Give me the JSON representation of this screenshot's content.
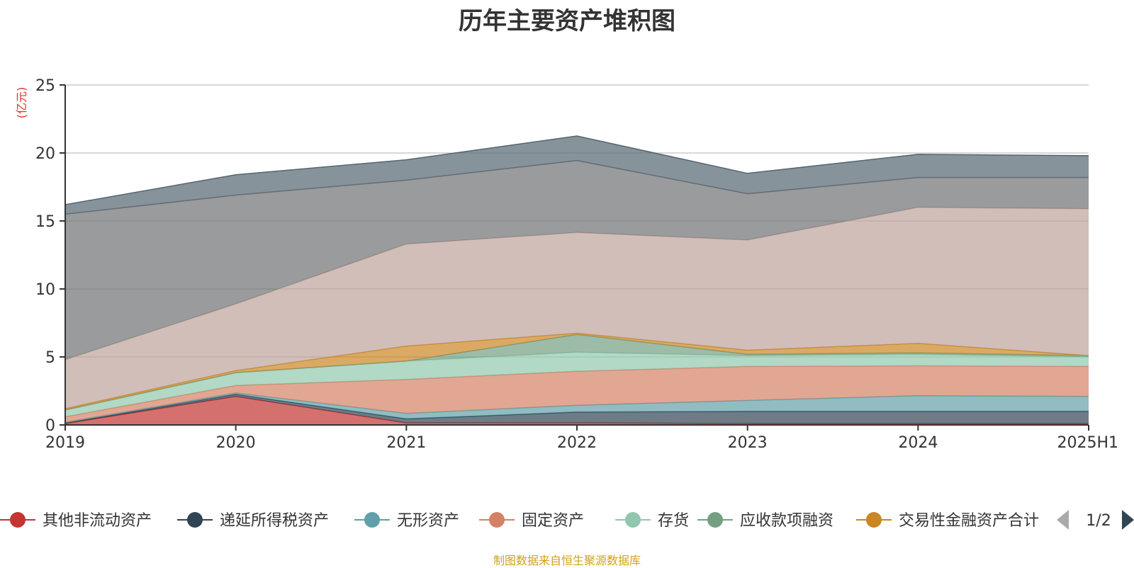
{
  "chart_data": {
    "type": "area",
    "stacked": true,
    "title": "历年主要资产堆积图",
    "ylabel": "(亿元)",
    "xlabel": "",
    "x": [
      "2019",
      "2020",
      "2021",
      "2022",
      "2023",
      "2024",
      "2025H1"
    ],
    "ylim": [
      0,
      25
    ],
    "yticks": [
      0,
      5,
      10,
      15,
      20,
      25
    ],
    "grid": true,
    "series": [
      {
        "name": "其他非流动资产",
        "color": "#c23531",
        "values": [
          0.1,
          2.1,
          0.15,
          0.15,
          0.1,
          0.1,
          0.1
        ]
      },
      {
        "name": "递延所得税资产",
        "color": "#2f4554",
        "values": [
          0.05,
          0.15,
          0.3,
          0.8,
          0.9,
          0.9,
          0.9
        ]
      },
      {
        "name": "无形资产",
        "color": "#61a0a8",
        "values": [
          0.05,
          0.1,
          0.4,
          0.5,
          0.8,
          1.15,
          1.1
        ]
      },
      {
        "name": "固定资产",
        "color": "#d48265",
        "values": [
          0.4,
          0.55,
          2.5,
          2.5,
          2.5,
          2.2,
          2.2
        ]
      },
      {
        "name": "存货",
        "color": "#91c7ae",
        "values": [
          0.5,
          0.95,
          1.35,
          1.4,
          0.8,
          0.85,
          0.7
        ]
      },
      {
        "name": "应收款项融资",
        "color": "#749f83",
        "values": [
          0.0,
          0.0,
          0.0,
          1.3,
          0.1,
          0.1,
          0.1
        ]
      },
      {
        "name": "交易性金融资产合计",
        "color": "#ca8622",
        "values": [
          0.1,
          0.15,
          1.1,
          0.1,
          0.3,
          0.7,
          0.0
        ]
      },
      {
        "name": "",
        "color": "#bda29a",
        "values": [
          3.6,
          4.9,
          7.5,
          7.4,
          8.1,
          10.0,
          10.8
        ]
      },
      {
        "name": "",
        "color": "#6e7074",
        "values": [
          10.7,
          8.0,
          4.7,
          5.3,
          3.4,
          2.2,
          2.3
        ]
      },
      {
        "name": "",
        "color": "#546570",
        "values": [
          0.7,
          1.5,
          1.5,
          1.8,
          1.5,
          1.7,
          1.6
        ]
      }
    ],
    "legend": {
      "position": "bottom",
      "page": "1/2"
    }
  },
  "footer": {
    "source": "制图数据来自恒生聚源数据库"
  }
}
